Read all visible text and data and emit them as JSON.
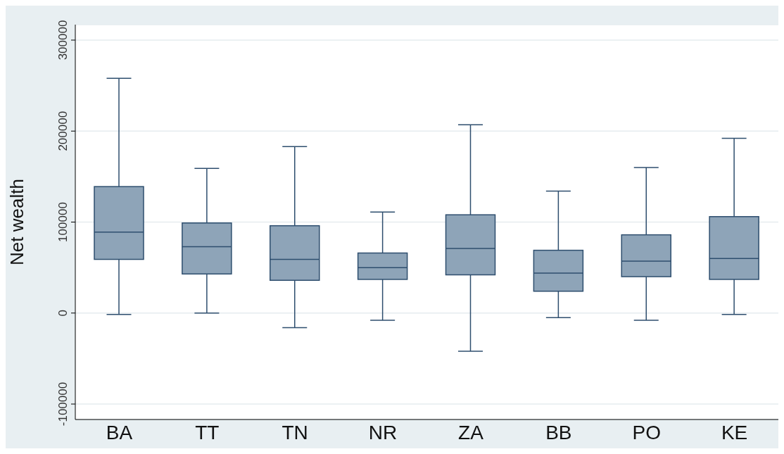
{
  "chart_data": {
    "type": "box",
    "ylabel": "Net wealth",
    "categories": [
      "BA",
      "TT",
      "TN",
      "NR",
      "ZA",
      "BB",
      "PO",
      "KE"
    ],
    "boxes": [
      {
        "low": -1500,
        "q1": 59000,
        "median": 89000,
        "q3": 139000,
        "high": 258000
      },
      {
        "low": 0,
        "q1": 43000,
        "median": 73000,
        "q3": 99000,
        "high": 159000
      },
      {
        "low": -16000,
        "q1": 36000,
        "median": 59000,
        "q3": 96000,
        "high": 183000
      },
      {
        "low": -8000,
        "q1": 37000,
        "median": 50000,
        "q3": 66000,
        "high": 111000
      },
      {
        "low": -42000,
        "q1": 42000,
        "median": 71000,
        "q3": 108000,
        "high": 207000
      },
      {
        "low": -5000,
        "q1": 24000,
        "median": 44000,
        "q3": 69000,
        "high": 134000
      },
      {
        "low": -8000,
        "q1": 40000,
        "median": 57000,
        "q3": 86000,
        "high": 160000
      },
      {
        "low": -1500,
        "q1": 37000,
        "median": 60000,
        "q3": 106000,
        "high": 192000
      }
    ],
    "color": "#8ea4b8",
    "ylim": [
      -117000,
      317000
    ],
    "yticks": [
      -100000,
      0,
      100000,
      200000,
      300000
    ],
    "grid": "y"
  }
}
